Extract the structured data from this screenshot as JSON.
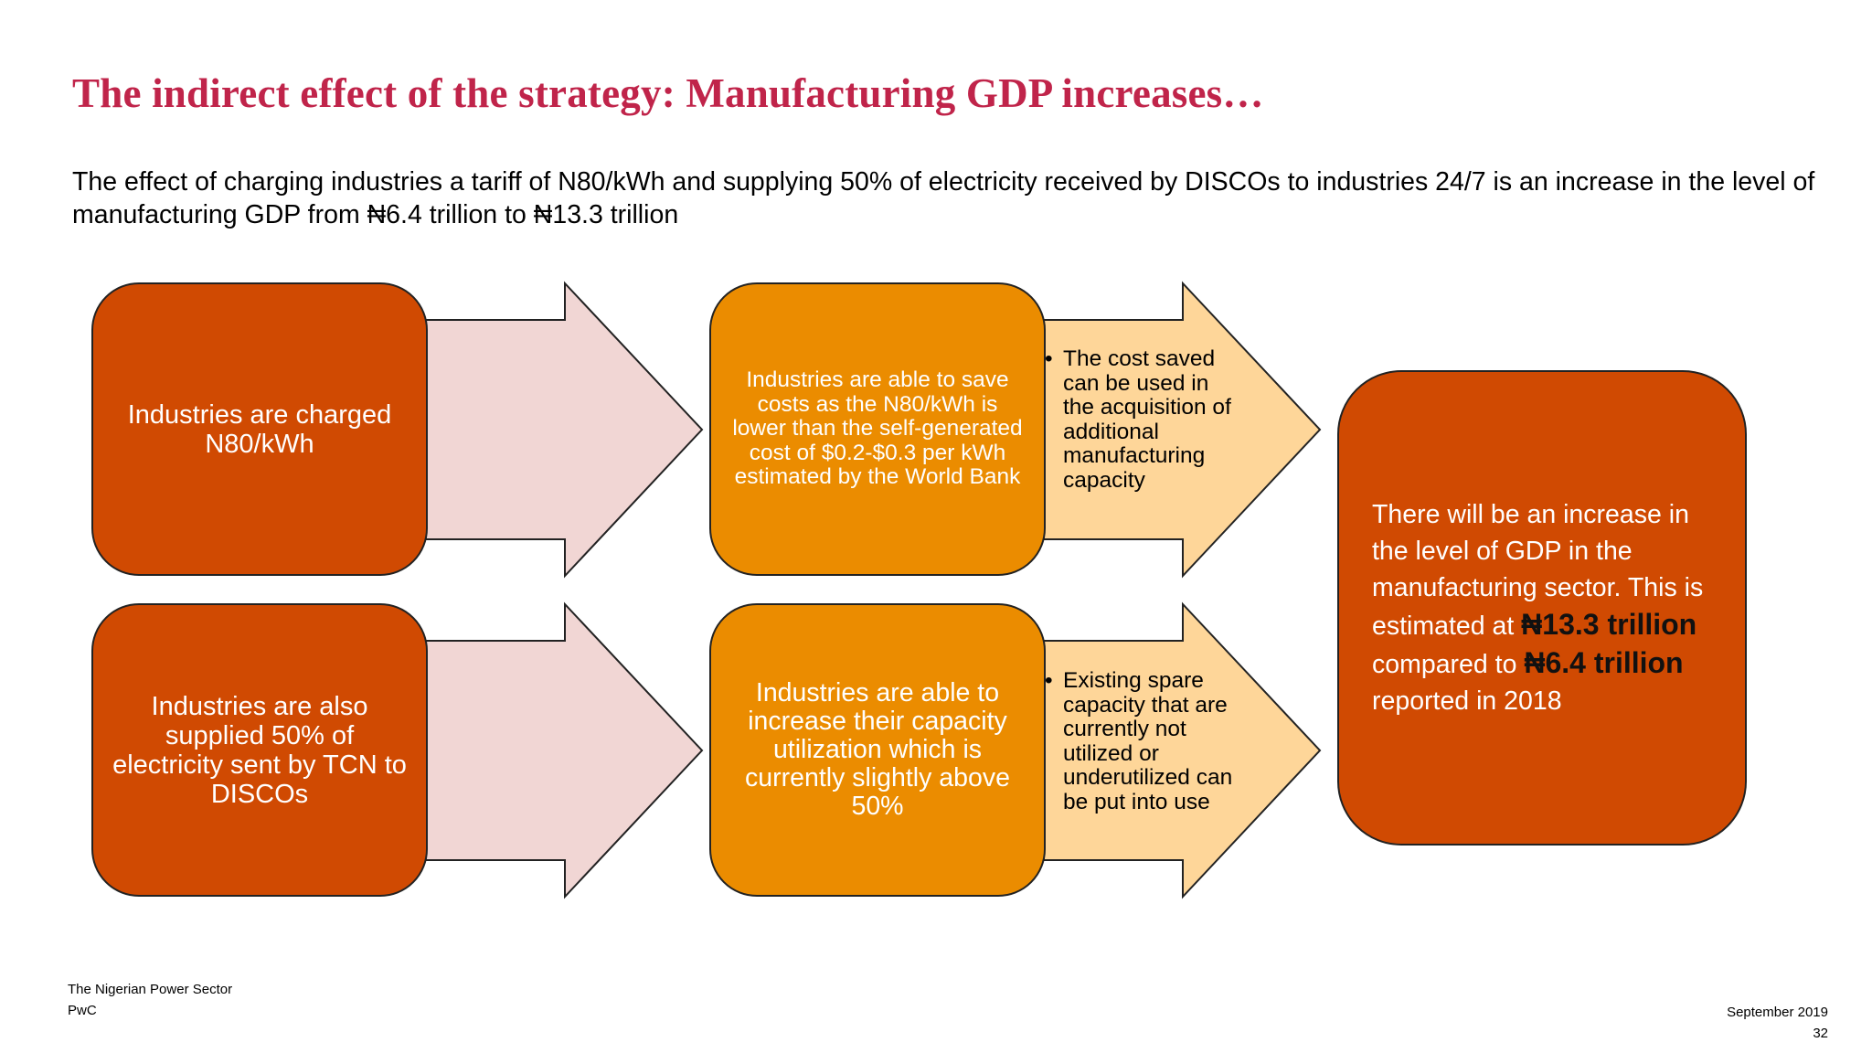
{
  "slide": {
    "title": "The indirect effect of the strategy: Manufacturing GDP increases…",
    "subtitle": "The effect of charging industries a tariff of N80/kWh and supplying 50% of electricity received by DISCOs to industries 24/7 is an increase in the level of manufacturing GDP from ₦6.4 trillion to ₦13.3 trillion"
  },
  "flow": {
    "row1_cause": "Industries are charged N80/kWh",
    "row2_cause": "Industries are also supplied 50% of electricity sent  by TCN to DISCOs",
    "row1_effect": "Industries are able to save costs as the N80/kWh is lower than the self-generated cost of $0.2-$0.3 per kWh estimated by the World Bank",
    "row2_effect": "Industries are able to increase their capacity utilization which is currently slightly above 50%",
    "bullet_symbol": "•",
    "row1_bullet": "The cost saved can be used in the acquisition of additional manufacturing capacity",
    "row2_bullet": "Existing spare capacity that are currently not utilized or underutilized can be put into use"
  },
  "result": {
    "text_1": "There will be an increase in the level of GDP in the manufacturing sector. This is estimated at ",
    "value_new": "₦13.3 trillion",
    "text_2": " compared to ",
    "value_old": "₦6.4 trillion",
    "text_3": " reported in 2018"
  },
  "footer": {
    "doc_title": "The Nigerian Power Sector",
    "org": "PwC",
    "date": "September 2019",
    "page": "32"
  },
  "colors": {
    "title": "#c0244a",
    "dark_box": "#d04a02",
    "orange_box": "#eb8c00",
    "pink_arrow": "#f1d6d4",
    "peach_arrow": "#fed699"
  }
}
